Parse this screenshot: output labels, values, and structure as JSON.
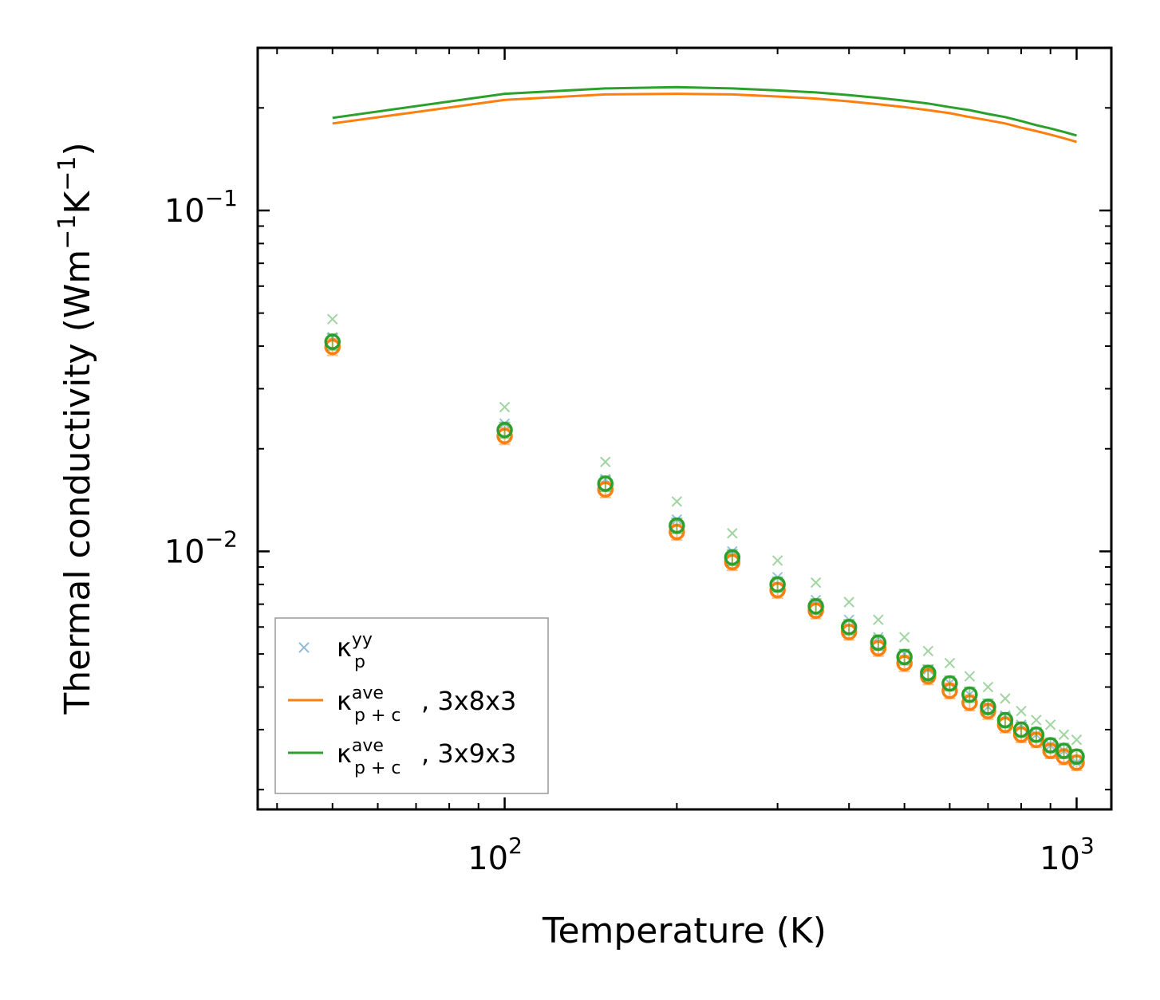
{
  "chart_data": {
    "type": "scatter",
    "xscale": "log",
    "yscale": "log",
    "xlabel": "Temperature (K)",
    "ylabel_prefix": "Thermal conductivity (Wm",
    "ylabel_sup1": "−1",
    "ylabel_mid": "K",
    "ylabel_sup2": "−1",
    "ylabel_suffix": ")",
    "xlim": [
      37,
      1150
    ],
    "ylim": [
      0.00175,
      0.3
    ],
    "x_ticks": [
      {
        "value": 100,
        "base": "10",
        "exp": "2"
      },
      {
        "value": 1000,
        "base": "10",
        "exp": "3"
      }
    ],
    "y_ticks": [
      {
        "value": 0.1,
        "base": "10",
        "exp": "−1"
      },
      {
        "value": 0.01,
        "base": "10",
        "exp": "−2"
      }
    ],
    "x": [
      50,
      100,
      150,
      200,
      250,
      300,
      350,
      400,
      450,
      500,
      550,
      600,
      650,
      700,
      750,
      800,
      850,
      900,
      950,
      1000
    ],
    "series": [
      {
        "name": "kappa_p_yy",
        "kind": "marker-x",
        "color": "#1f77b4",
        "values": [
          0.0425,
          0.0237,
          0.0163,
          0.0124,
          0.01,
          0.0084,
          0.0072,
          0.0063,
          0.0056,
          0.005,
          0.0045,
          0.0041,
          0.0038,
          0.0035,
          0.0033,
          0.0031,
          0.0029,
          0.0027,
          0.0026,
          0.0024
        ]
      },
      {
        "name": "kappa_p_yy_green",
        "kind": "marker-x",
        "color": "#2ca02c",
        "values": [
          0.048,
          0.0265,
          0.0183,
          0.014,
          0.0113,
          0.0094,
          0.0081,
          0.0071,
          0.0063,
          0.0056,
          0.0051,
          0.0047,
          0.0043,
          0.004,
          0.0037,
          0.0034,
          0.0032,
          0.0031,
          0.0029,
          0.0028
        ]
      },
      {
        "name": "kappa_pc_ave_3x8x3_markers",
        "kind": "marker-o",
        "color": "#ff7f0e",
        "values": [
          0.0398,
          0.0218,
          0.0152,
          0.0114,
          0.0093,
          0.0077,
          0.0067,
          0.0058,
          0.0052,
          0.0047,
          0.0043,
          0.0039,
          0.0036,
          0.0034,
          0.0031,
          0.0029,
          0.0028,
          0.0026,
          0.0025,
          0.0024
        ],
        "errors": [
          0.0022,
          0.0012,
          0.0008,
          0.0006,
          0.0005,
          0.0004,
          0.00035,
          0.0003,
          0.00027,
          0.00025,
          0.00023,
          0.0002,
          0.00019,
          0.00018,
          0.00016,
          0.00015,
          0.00014,
          0.00013,
          0.00013,
          0.00012
        ]
      },
      {
        "name": "kappa_pc_ave_3x9x3_markers",
        "kind": "marker-o",
        "color": "#2ca02c",
        "values": [
          0.0412,
          0.0227,
          0.0158,
          0.0119,
          0.0096,
          0.008,
          0.0069,
          0.006,
          0.0054,
          0.0049,
          0.0044,
          0.0041,
          0.0038,
          0.0035,
          0.0032,
          0.003,
          0.0029,
          0.0027,
          0.0026,
          0.0025
        ],
        "errors": [
          0.0022,
          0.0012,
          0.0008,
          0.0006,
          0.0005,
          0.0004,
          0.00035,
          0.0003,
          0.00027,
          0.00025,
          0.00023,
          0.0002,
          0.00019,
          0.00018,
          0.00016,
          0.00015,
          0.00014,
          0.00013,
          0.00013,
          0.00012
        ]
      },
      {
        "name": "kappa_pc_ave_3x8x3_line",
        "kind": "line",
        "color": "#ff7f0e",
        "values": [
          0.18,
          0.211,
          0.219,
          0.22,
          0.219,
          0.216,
          0.213,
          0.209,
          0.205,
          0.201,
          0.197,
          0.193,
          0.188,
          0.184,
          0.18,
          0.175,
          0.171,
          0.167,
          0.163,
          0.159
        ]
      },
      {
        "name": "kappa_pc_ave_3x9x3_line",
        "kind": "line",
        "color": "#2ca02c",
        "values": [
          0.187,
          0.22,
          0.228,
          0.23,
          0.228,
          0.225,
          0.222,
          0.218,
          0.214,
          0.21,
          0.206,
          0.201,
          0.197,
          0.192,
          0.188,
          0.183,
          0.178,
          0.174,
          0.17,
          0.166
        ]
      }
    ],
    "legend": {
      "position": "lower-left",
      "entries": [
        {
          "symbol": "x",
          "color": "#1f77b4",
          "base": "κ",
          "sup": "yy",
          "sub": "p",
          "tail": ""
        },
        {
          "symbol": "line",
          "color": "#ff7f0e",
          "base": "κ",
          "sup": "ave",
          "sub": "p + c",
          "tail": ", 3x8x3"
        },
        {
          "symbol": "line",
          "color": "#2ca02c",
          "base": "κ",
          "sup": "ave",
          "sub": "p + c",
          "tail": ", 3x9x3"
        }
      ]
    }
  }
}
